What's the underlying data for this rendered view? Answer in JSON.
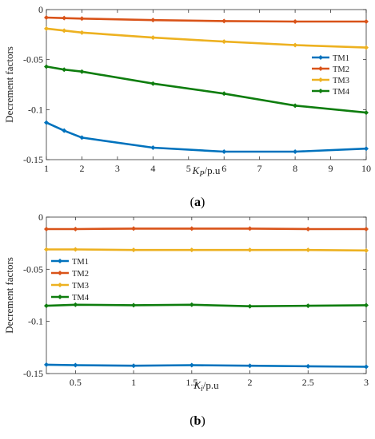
{
  "chart_data": [
    {
      "type": "line",
      "caption_open": "(",
      "caption_letter": "a",
      "caption_close": ")",
      "ylabel": "Decrement factors",
      "xlabel_main": "K",
      "xlabel_sub": "P",
      "xlabel_unit": "/p.u",
      "xlim": [
        1,
        10
      ],
      "ylim": [
        -0.15,
        0
      ],
      "x_ticks": [
        "1",
        "2",
        "3",
        "4",
        "5",
        "6",
        "7",
        "8",
        "9",
        "10"
      ],
      "y_ticks": [
        "0",
        "-0.05",
        "-0.1",
        "-0.15"
      ],
      "legend_position": "right-middle",
      "series": [
        {
          "name": "TM1",
          "color": "#0072BD",
          "x": [
            1,
            1.5,
            2,
            4,
            6,
            8,
            10
          ],
          "y": [
            -0.113,
            -0.121,
            -0.128,
            -0.138,
            -0.142,
            -0.142,
            -0.139
          ]
        },
        {
          "name": "TM2",
          "color": "#D95319",
          "x": [
            1,
            1.5,
            2,
            4,
            6,
            8,
            10
          ],
          "y": [
            -0.008,
            -0.0085,
            -0.009,
            -0.0105,
            -0.0115,
            -0.012,
            -0.012
          ]
        },
        {
          "name": "TM3",
          "color": "#EDB120",
          "x": [
            1,
            1.5,
            2,
            4,
            6,
            8,
            10
          ],
          "y": [
            -0.019,
            -0.021,
            -0.023,
            -0.028,
            -0.032,
            -0.0355,
            -0.038
          ]
        },
        {
          "name": "TM4",
          "color": "#0E7D0E",
          "x": [
            1,
            1.5,
            2,
            4,
            6,
            8,
            10
          ],
          "y": [
            -0.057,
            -0.06,
            -0.062,
            -0.074,
            -0.084,
            -0.096,
            -0.103
          ]
        }
      ]
    },
    {
      "type": "line",
      "caption_open": "(",
      "caption_letter": "b",
      "caption_close": ")",
      "ylabel": "Decrement factors",
      "xlabel_main": "K",
      "xlabel_sub": "i",
      "xlabel_unit": "/p.u",
      "xlim": [
        0.25,
        3
      ],
      "ylim": [
        -0.15,
        0
      ],
      "x_ticks": [
        "0.5",
        "1",
        "1.5",
        "2",
        "2.5",
        "3"
      ],
      "x_tick_values": [
        0.5,
        1,
        1.5,
        2,
        2.5,
        3
      ],
      "y_ticks": [
        "0",
        "-0.05",
        "-0.1",
        "-0.15"
      ],
      "legend_position": "left-middle",
      "series": [
        {
          "name": "TM1",
          "color": "#0072BD",
          "x": [
            0.25,
            0.5,
            1,
            1.5,
            2,
            2.5,
            3
          ],
          "y": [
            -0.1415,
            -0.142,
            -0.1425,
            -0.142,
            -0.1425,
            -0.143,
            -0.1435
          ]
        },
        {
          "name": "TM2",
          "color": "#D95319",
          "x": [
            0.25,
            0.5,
            1,
            1.5,
            2,
            2.5,
            3
          ],
          "y": [
            -0.0115,
            -0.0115,
            -0.011,
            -0.011,
            -0.011,
            -0.0115,
            -0.0115
          ]
        },
        {
          "name": "TM3",
          "color": "#EDB120",
          "x": [
            0.25,
            0.5,
            1,
            1.5,
            2,
            2.5,
            3
          ],
          "y": [
            -0.031,
            -0.031,
            -0.0315,
            -0.0315,
            -0.0315,
            -0.0315,
            -0.032
          ]
        },
        {
          "name": "TM4",
          "color": "#0E7D0E",
          "x": [
            0.25,
            0.5,
            1,
            1.5,
            2,
            2.5,
            3
          ],
          "y": [
            -0.085,
            -0.084,
            -0.0845,
            -0.084,
            -0.0855,
            -0.085,
            -0.0845
          ]
        }
      ]
    }
  ]
}
